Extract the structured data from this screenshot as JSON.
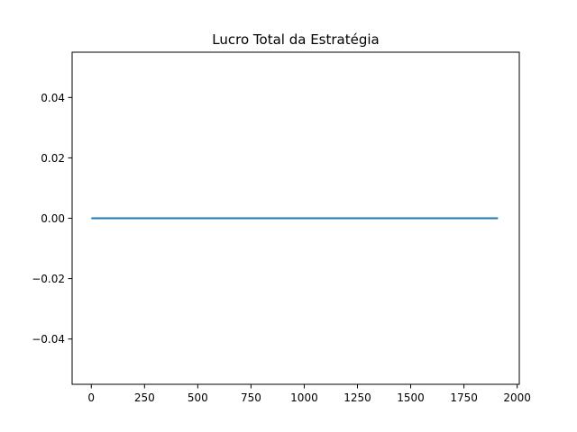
{
  "chart_data": {
    "type": "line",
    "title": "Lucro Total da Estratégia",
    "xlabel": "",
    "ylabel": "",
    "xlim": [
      -90,
      2010
    ],
    "ylim": [
      -0.055,
      0.055
    ],
    "x_ticks": [
      0,
      250,
      500,
      750,
      1000,
      1250,
      1500,
      1750,
      2000
    ],
    "x_tick_labels": [
      "0",
      "250",
      "500",
      "750",
      "1000",
      "1250",
      "1500",
      "1750",
      "2000"
    ],
    "y_ticks": [
      -0.04,
      -0.02,
      0.0,
      0.02,
      0.04
    ],
    "y_tick_labels": [
      "−0.04",
      "−0.02",
      "0.00",
      "0.02",
      "0.04"
    ],
    "grid": false,
    "legend": "none",
    "series": [
      {
        "color": "#1f77b4",
        "x": [
          0,
          1910
        ],
        "y": [
          0,
          0
        ]
      }
    ]
  }
}
